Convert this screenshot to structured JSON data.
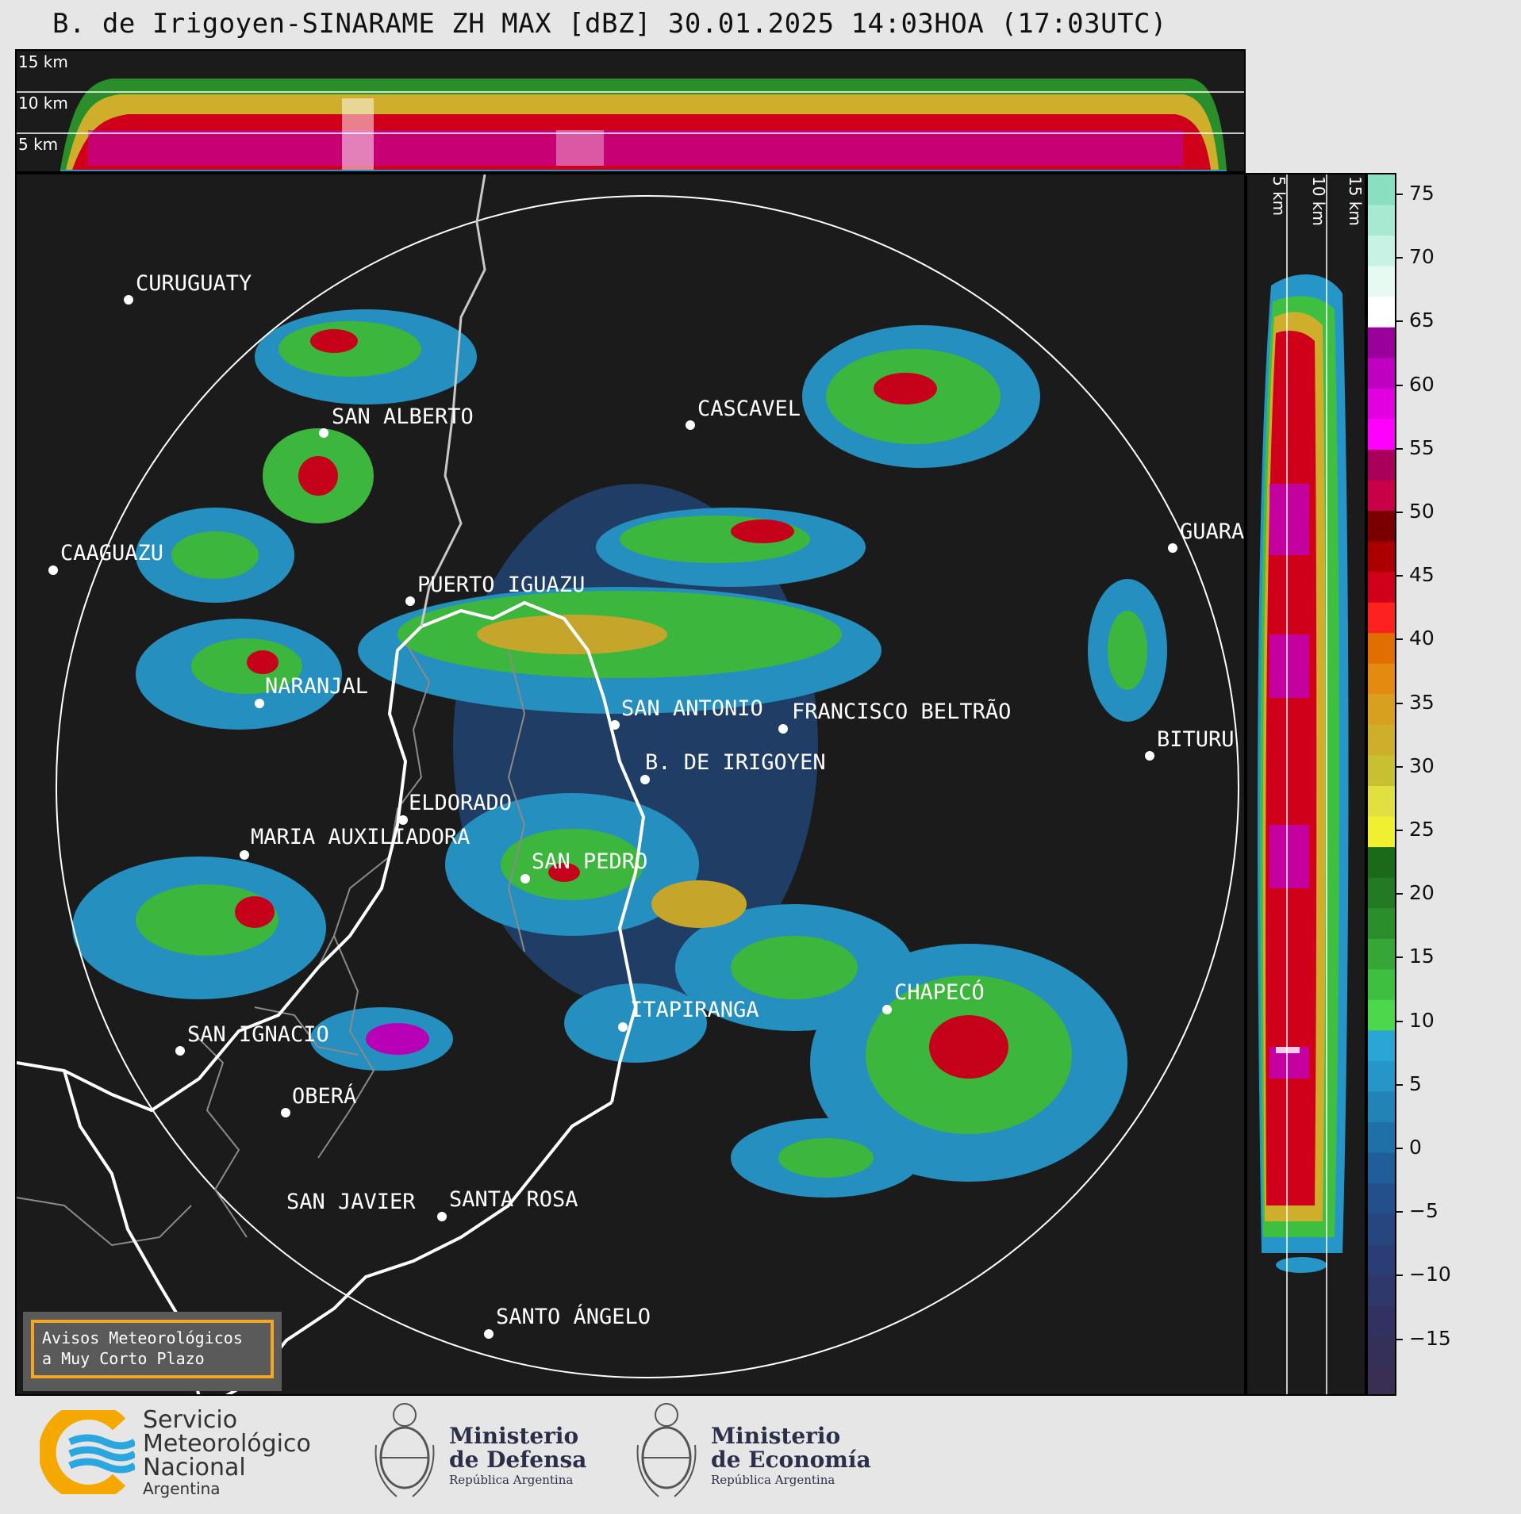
{
  "title": "B. de Irigoyen-SINARAME ZH MAX [dBZ] 30.01.2025 14:03HOA (17:03UTC)",
  "height_labels": [
    "15 km",
    "10 km",
    "5 km"
  ],
  "colorbar": {
    "ticks": [
      "75",
      "70",
      "65",
      "60",
      "55",
      "50",
      "45",
      "40",
      "35",
      "30",
      "25",
      "20",
      "15",
      "10",
      "5",
      "0",
      "−5",
      "−10",
      "−15"
    ],
    "segments": [
      "#88e0c0",
      "#a6ead2",
      "#c7f3e4",
      "#e6faf2",
      "#ffffff",
      "#9a009a",
      "#c000c0",
      "#e000e0",
      "#ff00ff",
      "#a8005a",
      "#c80046",
      "#7a0000",
      "#aa0000",
      "#d0001a",
      "#ff2020",
      "#e06e00",
      "#e58a10",
      "#d9a020",
      "#cfae2c",
      "#c8c030",
      "#e0e040",
      "#f0f030",
      "#1a6a1a",
      "#227a22",
      "#2a8f2a",
      "#36a636",
      "#3fbf3f",
      "#4cd84c",
      "#2aa6d6",
      "#2696c8",
      "#2283b6",
      "#2070a8",
      "#1f5e98",
      "#23508a",
      "#264680",
      "#2a3e75",
      "#2e386a",
      "#313261",
      "#353058",
      "#3a2f52"
    ],
    "colors": {
      "cold": "#3a3d6e",
      "rain": "#2a9a3a",
      "heavy": "#cc1030",
      "extreme": "#e000e0"
    }
  },
  "cities": [
    {
      "name": "CURUGUATY"
    },
    {
      "name": "SAN ALBERTO"
    },
    {
      "name": "CASCAVEL"
    },
    {
      "name": "CAAGUAZU"
    },
    {
      "name": "GUARA"
    },
    {
      "name": "PUERTO IGUAZU"
    },
    {
      "name": "NARANJAL"
    },
    {
      "name": "SAN ANTONIO"
    },
    {
      "name": "FRANCISCO BELTRÃO"
    },
    {
      "name": "B. DE IRIGOYEN"
    },
    {
      "name": "BITURU"
    },
    {
      "name": "ELDORADO"
    },
    {
      "name": "MARIA AUXILIADORA"
    },
    {
      "name": "SAN PEDRO"
    },
    {
      "name": "CHAPECÓ"
    },
    {
      "name": "ITAPIRANGA"
    },
    {
      "name": "SAN IGNACIO"
    },
    {
      "name": "OBERÁ"
    },
    {
      "name": "SAN JAVIER"
    },
    {
      "name": "SANTA ROSA"
    },
    {
      "name": "SANTO ÁNGELO"
    }
  ],
  "aviso": {
    "line1": "Avisos Meteorológicos",
    "line2": "a Muy Corto Plazo"
  },
  "logos": {
    "smn": {
      "line1": "Servicio",
      "line2": "Meteorológico",
      "line3": "Nacional",
      "line4": "Argentina"
    },
    "defensa": {
      "line1": "Ministerio",
      "line2": "de Defensa",
      "line3": "República Argentina"
    },
    "economia": {
      "line1": "Ministerio",
      "line2": "de Economía",
      "line3": "República Argentina"
    }
  }
}
